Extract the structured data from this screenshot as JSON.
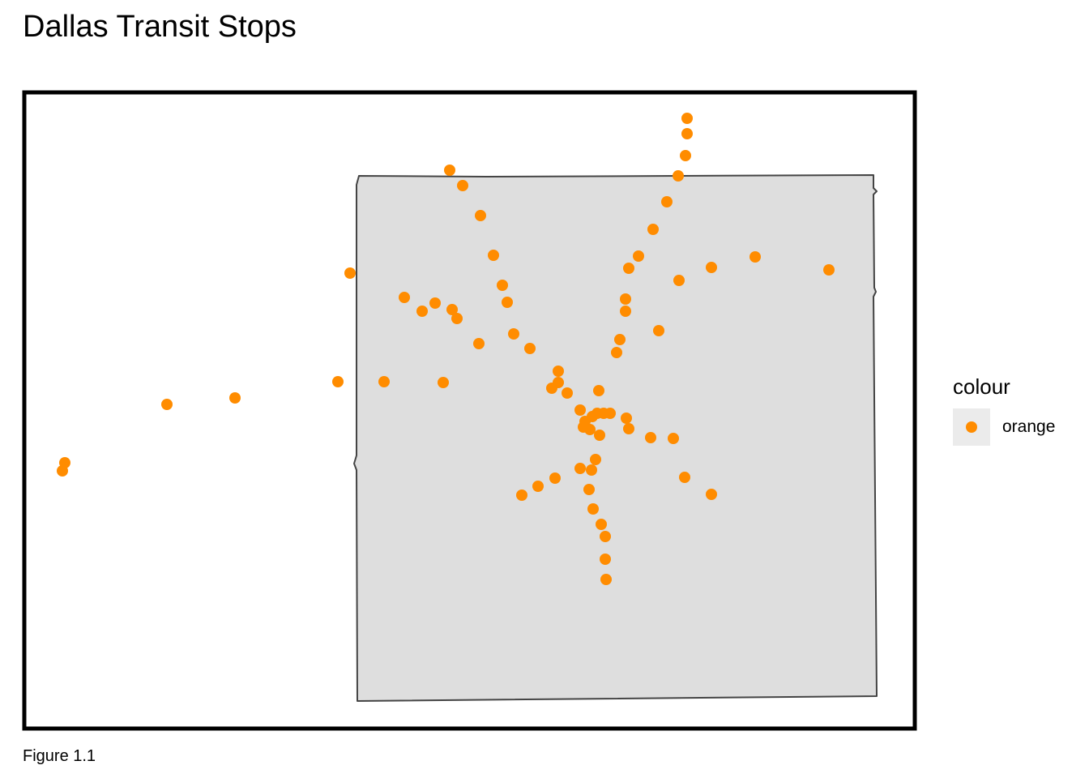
{
  "title": "Dallas Transit Stops",
  "caption": "Figure 1.1",
  "legend": {
    "title": "colour",
    "label": "orange"
  },
  "colors": {
    "point": "#ff8c00",
    "county_fill": "#dedede",
    "county_stroke": "#444444",
    "frame": "#000000"
  },
  "chart_data": {
    "type": "scatter",
    "x": [
      848,
      848,
      846,
      837,
      823,
      806,
      788,
      776,
      838,
      878,
      932,
      1023,
      772,
      772,
      813,
      765,
      761,
      555,
      571,
      593,
      609,
      620,
      626,
      634,
      654,
      591,
      499,
      521,
      537,
      558,
      564,
      432,
      417,
      474,
      547,
      290,
      206,
      80,
      77,
      689,
      689,
      681,
      700,
      739,
      716,
      722,
      731,
      737,
      745,
      753,
      773,
      720,
      728,
      740,
      776,
      803,
      831,
      845,
      878,
      735,
      716,
      730,
      685,
      664,
      644,
      727,
      732,
      742,
      747,
      747,
      748
    ],
    "y": [
      146,
      165,
      192,
      217,
      249,
      283,
      316,
      331,
      346,
      330,
      317,
      333,
      369,
      384,
      408,
      419,
      435,
      210,
      229,
      266,
      315,
      352,
      373,
      412,
      430,
      424,
      367,
      384,
      374,
      382,
      393,
      337,
      471,
      471,
      472,
      491,
      499,
      571,
      581,
      458,
      472,
      479,
      485,
      482,
      506,
      520,
      514,
      510,
      510,
      510,
      516,
      527,
      530,
      537,
      529,
      540,
      541,
      589,
      610,
      567,
      578,
      580,
      590,
      600,
      611,
      604,
      628,
      647,
      662,
      690,
      715
    ]
  }
}
